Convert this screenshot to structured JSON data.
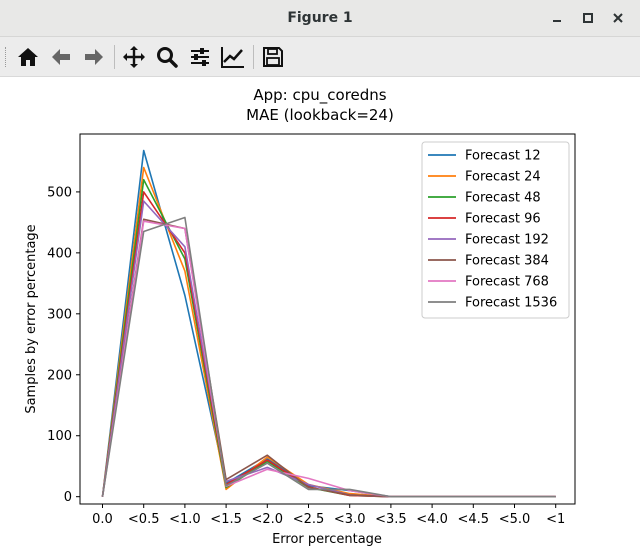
{
  "window": {
    "title": "Figure 1",
    "minimize_glyph": "–",
    "maximize_glyph": "□",
    "close_glyph": "✕"
  },
  "toolbar": {
    "buttons": [
      "home-icon",
      "back-arrow-icon",
      "forward-arrow-icon",
      "pan-icon",
      "zoom-icon",
      "subplots-icon",
      "edit-curves-icon",
      "save-icon"
    ]
  },
  "chart_data": {
    "type": "line",
    "title_line1": "App: cpu_coredns",
    "title_line2": "MAE (lookback=24)",
    "xlabel": "Error percentage",
    "ylabel": "Samples by error percentage",
    "categories": [
      "0.0",
      "<0.5",
      "<1.0",
      "<1.5",
      "<2.0",
      "<2.5",
      "<3.0",
      "<3.5",
      "<4.0",
      "<4.5",
      "<5.0",
      "<1"
    ],
    "yticks": [
      0,
      100,
      200,
      300,
      400,
      500
    ],
    "ylim": [
      -12,
      595
    ],
    "grid": false,
    "legend_position": "upper right",
    "series": [
      {
        "name": "Forecast 12",
        "color": "#1f77b4",
        "values": [
          0,
          568,
          330,
          22,
          62,
          18,
          10,
          0,
          0,
          0,
          0,
          0
        ]
      },
      {
        "name": "Forecast 24",
        "color": "#ff7f0e",
        "values": [
          0,
          540,
          370,
          12,
          65,
          20,
          5,
          0,
          0,
          0,
          0,
          0
        ]
      },
      {
        "name": "Forecast 48",
        "color": "#2ca02c",
        "values": [
          0,
          520,
          390,
          15,
          58,
          15,
          2,
          0,
          0,
          0,
          0,
          0
        ]
      },
      {
        "name": "Forecast 96",
        "color": "#d62728",
        "values": [
          0,
          500,
          400,
          20,
          60,
          16,
          2,
          0,
          0,
          0,
          0,
          0
        ]
      },
      {
        "name": "Forecast 192",
        "color": "#9467bd",
        "values": [
          0,
          485,
          410,
          25,
          48,
          20,
          3,
          0,
          0,
          0,
          0,
          0
        ]
      },
      {
        "name": "Forecast 384",
        "color": "#8c564b",
        "values": [
          0,
          455,
          440,
          28,
          68,
          15,
          3,
          0,
          0,
          0,
          0,
          0
        ]
      },
      {
        "name": "Forecast 768",
        "color": "#e377c2",
        "values": [
          0,
          452,
          440,
          17,
          45,
          30,
          10,
          0,
          0,
          0,
          0,
          0
        ]
      },
      {
        "name": "Forecast 1536",
        "color": "#7f7f7f",
        "values": [
          0,
          435,
          458,
          18,
          55,
          12,
          12,
          0,
          0,
          0,
          0,
          0
        ]
      }
    ]
  }
}
